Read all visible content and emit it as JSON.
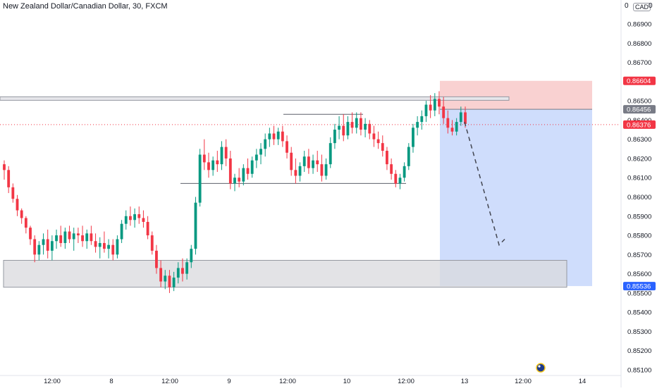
{
  "header": {
    "title": "New Zealand Dollar/Canadian Dollar, 30, FXCM",
    "currency": "CAD",
    "corner_value_left": "0",
    "corner_value_right": "0"
  },
  "colors": {
    "up": "#089981",
    "down": "#f23645",
    "stop_zone": "#f8c9c9",
    "target_zone": "#c7d7fb",
    "demand_zone": "#d9d9dd",
    "price_line": "#f23645",
    "entry_badge": "#787b86",
    "stop_badge": "#f23645",
    "target_badge": "#2962ff"
  },
  "chart_data": {
    "type": "candlestick",
    "y_axis": {
      "min": 0.8508,
      "max": 0.8699,
      "ticks": [
        "0.86900",
        "0.86800",
        "0.86700",
        "0.86500",
        "0.86400",
        "0.86300",
        "0.86200",
        "0.86100",
        "0.86000",
        "0.85900",
        "0.85800",
        "0.85700",
        "0.85600",
        "0.85500",
        "0.85400",
        "0.85300",
        "0.85200",
        "0.85100"
      ]
    },
    "x_axis": {
      "ticks": [
        "12:00",
        "8",
        "12:00",
        "9",
        "12:00",
        "10",
        "12:00",
        "13",
        "12:00",
        "14"
      ]
    },
    "price_labels": {
      "stop": "0.86604",
      "entry": "0.86456",
      "current": "0.86376",
      "target": "0.85536"
    },
    "levels": {
      "resistance": 0.8651,
      "range_top": 0.8643,
      "range_bottom": 0.8607,
      "current": 0.86376
    },
    "position": {
      "entry": 0.86456,
      "stop": 0.86604,
      "target": 0.85536
    },
    "demand_zone": {
      "top": 0.8567,
      "bottom": 0.8553
    },
    "projection": [
      {
        "from": 0.8639,
        "to": 0.8575
      },
      {
        "from": 0.8575,
        "to": 0.8578
      }
    ],
    "candles": [
      [
        0.8617,
        0.8619,
        0.8609,
        0.8614
      ],
      [
        0.8614,
        0.8616,
        0.8602,
        0.8605
      ],
      [
        0.8605,
        0.8607,
        0.8597,
        0.8599
      ],
      [
        0.8599,
        0.8601,
        0.859,
        0.8593
      ],
      [
        0.8593,
        0.8594,
        0.8586,
        0.8589
      ],
      [
        0.8589,
        0.859,
        0.8581,
        0.8584
      ],
      [
        0.8584,
        0.8585,
        0.8575,
        0.8578
      ],
      [
        0.8578,
        0.858,
        0.8566,
        0.857
      ],
      [
        0.857,
        0.8577,
        0.8567,
        0.8575
      ],
      [
        0.8575,
        0.8581,
        0.857,
        0.8578
      ],
      [
        0.8578,
        0.8583,
        0.8568,
        0.8572
      ],
      [
        0.8572,
        0.858,
        0.8567,
        0.8577
      ],
      [
        0.8577,
        0.8583,
        0.8573,
        0.858
      ],
      [
        0.858,
        0.8585,
        0.8574,
        0.8576
      ],
      [
        0.8576,
        0.8584,
        0.8573,
        0.8582
      ],
      [
        0.8582,
        0.8585,
        0.8576,
        0.8578
      ],
      [
        0.8578,
        0.8584,
        0.8572,
        0.8581
      ],
      [
        0.8581,
        0.8584,
        0.8576,
        0.858
      ],
      [
        0.858,
        0.8585,
        0.8574,
        0.8577
      ],
      [
        0.8577,
        0.8583,
        0.8573,
        0.8581
      ],
      [
        0.8581,
        0.8585,
        0.8575,
        0.8577
      ],
      [
        0.8577,
        0.8581,
        0.8571,
        0.8574
      ],
      [
        0.8574,
        0.8579,
        0.8568,
        0.8576
      ],
      [
        0.8576,
        0.8582,
        0.8571,
        0.8573
      ],
      [
        0.8573,
        0.8578,
        0.8568,
        0.8575
      ],
      [
        0.8575,
        0.8578,
        0.8567,
        0.857
      ],
      [
        0.857,
        0.858,
        0.8568,
        0.8578
      ],
      [
        0.8578,
        0.8588,
        0.8576,
        0.8586
      ],
      [
        0.8586,
        0.8593,
        0.8583,
        0.859
      ],
      [
        0.859,
        0.8595,
        0.8585,
        0.8588
      ],
      [
        0.8588,
        0.8594,
        0.8584,
        0.8591
      ],
      [
        0.8591,
        0.8595,
        0.8586,
        0.8589
      ],
      [
        0.8589,
        0.8593,
        0.8584,
        0.8587
      ],
      [
        0.8587,
        0.859,
        0.8578,
        0.858
      ],
      [
        0.858,
        0.8582,
        0.857,
        0.8572
      ],
      [
        0.8572,
        0.8575,
        0.856,
        0.8563
      ],
      [
        0.8563,
        0.8567,
        0.8553,
        0.8556
      ],
      [
        0.8556,
        0.8562,
        0.8552,
        0.8559
      ],
      [
        0.8559,
        0.8562,
        0.855,
        0.8553
      ],
      [
        0.8553,
        0.8561,
        0.8551,
        0.8558
      ],
      [
        0.8558,
        0.8566,
        0.8555,
        0.8563
      ],
      [
        0.8563,
        0.8568,
        0.8556,
        0.856
      ],
      [
        0.856,
        0.8568,
        0.8557,
        0.8566
      ],
      [
        0.8566,
        0.8575,
        0.8563,
        0.8573
      ],
      [
        0.8573,
        0.86,
        0.857,
        0.8597
      ],
      [
        0.8597,
        0.8625,
        0.8595,
        0.8622
      ],
      [
        0.8622,
        0.863,
        0.8614,
        0.8618
      ],
      [
        0.8618,
        0.8623,
        0.861,
        0.8614
      ],
      [
        0.8614,
        0.8621,
        0.8611,
        0.8619
      ],
      [
        0.8619,
        0.8624,
        0.8613,
        0.8617
      ],
      [
        0.8617,
        0.8629,
        0.8614,
        0.8626
      ],
      [
        0.8626,
        0.863,
        0.8616,
        0.862
      ],
      [
        0.862,
        0.8624,
        0.8604,
        0.8607
      ],
      [
        0.8607,
        0.8612,
        0.8603,
        0.861
      ],
      [
        0.861,
        0.8615,
        0.8605,
        0.8608
      ],
      [
        0.8608,
        0.8617,
        0.8606,
        0.8615
      ],
      [
        0.8615,
        0.862,
        0.8609,
        0.8612
      ],
      [
        0.8612,
        0.8621,
        0.861,
        0.8619
      ],
      [
        0.8619,
        0.8625,
        0.8615,
        0.8622
      ],
      [
        0.8622,
        0.8628,
        0.8617,
        0.8625
      ],
      [
        0.8625,
        0.8633,
        0.8621,
        0.863
      ],
      [
        0.863,
        0.8636,
        0.8626,
        0.8633
      ],
      [
        0.8633,
        0.8637,
        0.8627,
        0.863
      ],
      [
        0.863,
        0.8636,
        0.8627,
        0.8634
      ],
      [
        0.8634,
        0.8637,
        0.8626,
        0.8629
      ],
      [
        0.8629,
        0.8632,
        0.862,
        0.8623
      ],
      [
        0.8623,
        0.8626,
        0.8611,
        0.8614
      ],
      [
        0.8614,
        0.862,
        0.8607,
        0.8611
      ],
      [
        0.8611,
        0.8618,
        0.8608,
        0.8616
      ],
      [
        0.8616,
        0.8624,
        0.8613,
        0.8621
      ],
      [
        0.8621,
        0.8625,
        0.8612,
        0.8615
      ],
      [
        0.8615,
        0.8622,
        0.8612,
        0.8619
      ],
      [
        0.8619,
        0.8624,
        0.8613,
        0.8617
      ],
      [
        0.8617,
        0.8622,
        0.8608,
        0.8611
      ],
      [
        0.8611,
        0.862,
        0.8609,
        0.8617
      ],
      [
        0.8617,
        0.8631,
        0.8615,
        0.8628
      ],
      [
        0.8628,
        0.8638,
        0.8625,
        0.8635
      ],
      [
        0.8635,
        0.8642,
        0.863,
        0.8637
      ],
      [
        0.8637,
        0.8643,
        0.8629,
        0.8632
      ],
      [
        0.8632,
        0.8642,
        0.863,
        0.8639
      ],
      [
        0.8639,
        0.8644,
        0.8633,
        0.8636
      ],
      [
        0.8636,
        0.8644,
        0.8633,
        0.8641
      ],
      [
        0.8641,
        0.8644,
        0.8632,
        0.8635
      ],
      [
        0.8635,
        0.8641,
        0.8631,
        0.8638
      ],
      [
        0.8638,
        0.864,
        0.863,
        0.8633
      ],
      [
        0.8633,
        0.8637,
        0.8626,
        0.863
      ],
      [
        0.863,
        0.8634,
        0.8625,
        0.8628
      ],
      [
        0.8628,
        0.8632,
        0.8621,
        0.8624
      ],
      [
        0.8624,
        0.8626,
        0.8614,
        0.8617
      ],
      [
        0.8617,
        0.862,
        0.8609,
        0.8612
      ],
      [
        0.8612,
        0.8614,
        0.8605,
        0.8607
      ],
      [
        0.8607,
        0.8612,
        0.8604,
        0.861
      ],
      [
        0.861,
        0.8618,
        0.8608,
        0.8616
      ],
      [
        0.8616,
        0.8628,
        0.8614,
        0.8626
      ],
      [
        0.8626,
        0.8638,
        0.8623,
        0.8636
      ],
      [
        0.8636,
        0.8642,
        0.8632,
        0.8639
      ],
      [
        0.8639,
        0.8645,
        0.8635,
        0.8642
      ],
      [
        0.8642,
        0.865,
        0.8639,
        0.8648
      ],
      [
        0.8648,
        0.8653,
        0.8641,
        0.8645
      ],
      [
        0.8645,
        0.8654,
        0.8642,
        0.8651
      ],
      [
        0.8651,
        0.8655,
        0.8643,
        0.8647
      ],
      [
        0.8647,
        0.8652,
        0.8638,
        0.8641
      ],
      [
        0.8641,
        0.8645,
        0.8633,
        0.8636
      ],
      [
        0.8636,
        0.864,
        0.8632,
        0.8634
      ],
      [
        0.8634,
        0.8641,
        0.8632,
        0.8639
      ],
      [
        0.8639,
        0.8647,
        0.8637,
        0.8644
      ],
      [
        0.8644,
        0.8647,
        0.8636,
        0.8638
      ]
    ]
  }
}
